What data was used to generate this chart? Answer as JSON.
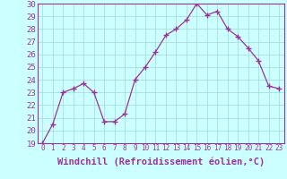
{
  "x": [
    0,
    1,
    2,
    3,
    4,
    5,
    6,
    7,
    8,
    9,
    10,
    11,
    12,
    13,
    14,
    15,
    16,
    17,
    18,
    19,
    20,
    21,
    22,
    23
  ],
  "y": [
    19.0,
    20.5,
    23.0,
    23.3,
    23.7,
    23.0,
    20.7,
    20.7,
    21.3,
    24.0,
    25.0,
    26.2,
    27.5,
    28.0,
    28.7,
    30.0,
    29.1,
    29.4,
    28.0,
    27.4,
    26.5,
    25.5,
    23.5,
    23.3
  ],
  "xlim": [
    -0.5,
    23.5
  ],
  "ylim": [
    19,
    30
  ],
  "yticks": [
    19,
    20,
    21,
    22,
    23,
    24,
    25,
    26,
    27,
    28,
    29,
    30
  ],
  "xticks": [
    0,
    1,
    2,
    3,
    4,
    5,
    6,
    7,
    8,
    9,
    10,
    11,
    12,
    13,
    14,
    15,
    16,
    17,
    18,
    19,
    20,
    21,
    22,
    23
  ],
  "xlabel": "Windchill (Refroidissement éolien,°C)",
  "line_color": "#993399",
  "marker": "+",
  "bg_color": "#ccffff",
  "grid_color": "#aadddd",
  "xlabel_color": "#993399",
  "tick_color": "#993399",
  "xlabel_fontsize": 7.5,
  "ytick_fontsize": 6.5,
  "xtick_fontsize": 5.5
}
